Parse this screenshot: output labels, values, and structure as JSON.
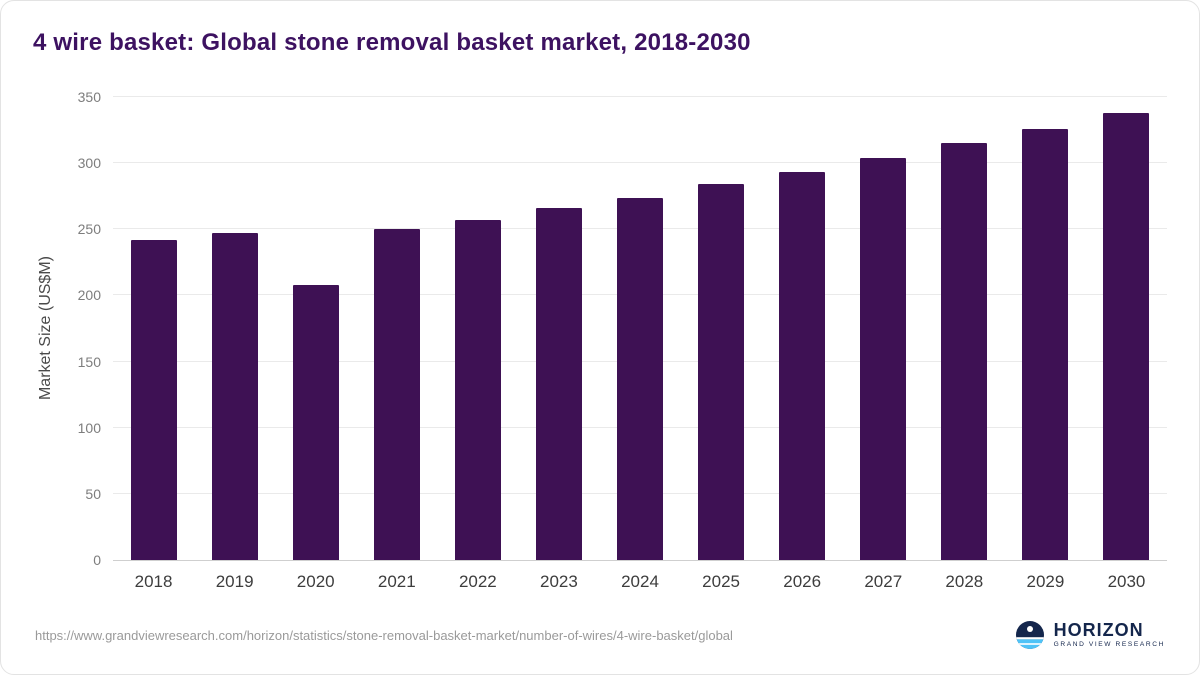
{
  "chart_data": {
    "type": "bar",
    "title": "4 wire basket: Global stone removal basket market, 2018-2030",
    "xlabel": "",
    "ylabel": "Market Size (US$M)",
    "categories": [
      "2018",
      "2019",
      "2020",
      "2021",
      "2022",
      "2023",
      "2024",
      "2025",
      "2026",
      "2027",
      "2028",
      "2029",
      "2030"
    ],
    "values": [
      242,
      247,
      208,
      250,
      257,
      266,
      274,
      284,
      293,
      304,
      315,
      326,
      338
    ],
    "ylim": [
      0,
      350
    ],
    "yticks": [
      0,
      50,
      100,
      150,
      200,
      250,
      300,
      350
    ],
    "grid": "horizontal",
    "legend": "none",
    "bar_color": "#3e1154"
  },
  "footer": {
    "source_url": "https://www.grandviewresearch.com/horizon/statistics/stone-removal-basket-market/number-of-wires/4-wire-basket/global",
    "logo": {
      "title": "HORIZON",
      "subtitle": "GRAND VIEW RESEARCH",
      "icon": "horizon-globe-icon",
      "navy": "#14264c",
      "light_blue": "#4fc3f7"
    }
  }
}
